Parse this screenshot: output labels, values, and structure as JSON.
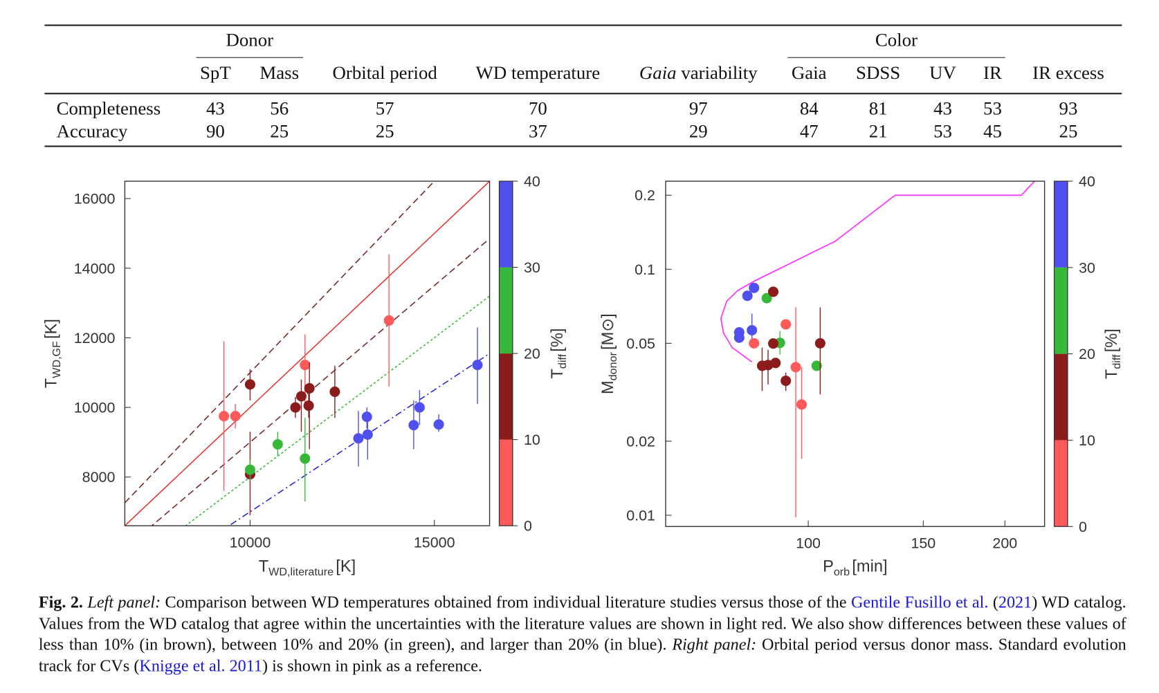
{
  "table": {
    "groups": [
      {
        "label": "Donor",
        "col_from": 0,
        "col_to": 1
      },
      {
        "label": "Color",
        "col_from": 5,
        "col_to": 8
      }
    ],
    "columns": [
      "SpT",
      "Mass",
      "Orbital period",
      "WD temperature",
      "Gaia variability",
      "Gaia",
      "SDSS",
      "UV",
      "IR",
      "IR excess"
    ],
    "italic_prefix": {
      "4": "Gaia"
    },
    "rows": [
      {
        "label": "Completeness",
        "values": [
          "43",
          "56",
          "57",
          "70",
          "97",
          "84",
          "81",
          "43",
          "53",
          "93"
        ]
      },
      {
        "label": "Accuracy",
        "values": [
          "90",
          "25",
          "25",
          "37",
          "29",
          "47",
          "21",
          "53",
          "45",
          "25"
        ]
      }
    ]
  },
  "chart_data": [
    {
      "type": "scatter",
      "panel": "left",
      "xscale": "linear",
      "yscale": "linear",
      "xlim": [
        6600,
        16500
      ],
      "ylim": [
        6600,
        16500
      ],
      "xticks": [
        10000,
        15000
      ],
      "yticks": [
        8000,
        10000,
        12000,
        14000,
        16000
      ],
      "xlabel": {
        "main": "T",
        "sub": "WD,literature",
        "unit": "[K]"
      },
      "ylabel": {
        "main": "T",
        "sub": "WD,GF",
        "unit": "[K]"
      },
      "grid": false,
      "lines": [
        {
          "slope": 1.1,
          "color": "#6b2020",
          "style": "dashed"
        },
        {
          "slope": 1.0,
          "color": "#e8302a",
          "style": "solid"
        },
        {
          "slope": 0.9,
          "color": "#6b2020",
          "style": "dashed"
        },
        {
          "slope": 0.8,
          "color": "#2db82d",
          "style": "dotted"
        },
        {
          "slope": 0.7,
          "color": "#1f1fd6",
          "style": "dashdot"
        }
      ],
      "points": [
        {
          "x": 9290,
          "y": 9750,
          "ylo": 7600,
          "yhi": 11900,
          "group": "0-10"
        },
        {
          "x": 9600,
          "y": 9750,
          "ylo": 9400,
          "yhi": 10100,
          "group": "0-10"
        },
        {
          "x": 11490,
          "y": 11220,
          "ylo": 10000,
          "yhi": 12100,
          "group": "0-10"
        },
        {
          "x": 13770,
          "y": 12500,
          "ylo": 10600,
          "yhi": 14400,
          "group": "0-10"
        },
        {
          "x": 10000,
          "y": 10660,
          "ylo": 10200,
          "yhi": 11100,
          "group": "10-20"
        },
        {
          "x": 10000,
          "y": 8080,
          "ylo": 6900,
          "yhi": 9300,
          "group": "10-20"
        },
        {
          "x": 11230,
          "y": 10000,
          "ylo": 9700,
          "yhi": 10300,
          "group": "10-20"
        },
        {
          "x": 11390,
          "y": 10320,
          "ylo": 9300,
          "yhi": 10800,
          "group": "10-20"
        },
        {
          "x": 11610,
          "y": 10550,
          "ylo": 8800,
          "yhi": 11300,
          "group": "10-20"
        },
        {
          "x": 11590,
          "y": 10050,
          "ylo": 9700,
          "yhi": 10400,
          "group": "10-20"
        },
        {
          "x": 12300,
          "y": 10450,
          "ylo": 9700,
          "yhi": 11200,
          "group": "10-20"
        },
        {
          "x": 10000,
          "y": 8210,
          "ylo": 7900,
          "yhi": 8500,
          "group": "20-30"
        },
        {
          "x": 10750,
          "y": 8940,
          "ylo": 8600,
          "yhi": 9300,
          "group": "20-30"
        },
        {
          "x": 11490,
          "y": 8530,
          "ylo": 7300,
          "yhi": 9700,
          "group": "20-30"
        },
        {
          "x": 12940,
          "y": 9110,
          "ylo": 8300,
          "yhi": 9900,
          "group": "30-40"
        },
        {
          "x": 13170,
          "y": 9730,
          "ylo": 9400,
          "yhi": 10000,
          "group": "30-40"
        },
        {
          "x": 13190,
          "y": 9220,
          "ylo": 8500,
          "yhi": 9600,
          "group": "30-40"
        },
        {
          "x": 14440,
          "y": 9490,
          "ylo": 8800,
          "yhi": 10200,
          "group": "30-40"
        },
        {
          "x": 14600,
          "y": 10000,
          "ylo": 9500,
          "yhi": 10500,
          "group": "30-40"
        },
        {
          "x": 15120,
          "y": 9510,
          "ylo": 9300,
          "yhi": 9800,
          "group": "30-40"
        },
        {
          "x": 16170,
          "y": 11220,
          "ylo": 10100,
          "yhi": 12300,
          "group": "30-40"
        }
      ],
      "colorbar": {
        "label": {
          "main": "T",
          "sub": "diff",
          "unit": "[%]"
        },
        "range": [
          0,
          40
        ],
        "ticks": [
          0,
          10,
          20,
          30,
          40
        ],
        "segments": [
          {
            "group": "0-10",
            "from": 0,
            "to": 10,
            "color": "#ff5a5a"
          },
          {
            "group": "10-20",
            "from": 10,
            "to": 20,
            "color": "#8b1c1c"
          },
          {
            "group": "20-30",
            "from": 20,
            "to": 30,
            "color": "#38b838"
          },
          {
            "group": "30-40",
            "from": 30,
            "to": 40,
            "color": "#5050ee"
          }
        ]
      }
    },
    {
      "type": "scatter",
      "panel": "right",
      "xscale": "log",
      "yscale": "log",
      "xlim": [
        60.5,
        230
      ],
      "ylim": [
        0.009,
        0.228
      ],
      "xticks": [
        100,
        150,
        200
      ],
      "yticks": [
        0.01,
        0.02,
        0.05,
        0.1,
        0.2
      ],
      "xlabel": {
        "main": "P",
        "sub": "orb",
        "unit": "[min]"
      },
      "ylabel": {
        "main": "M",
        "sub": "donor",
        "unit": "[M⊙]"
      },
      "grid": false,
      "track": {
        "color": "#ff33ff",
        "points": [
          [
            222,
            0.228
          ],
          [
            212,
            0.2
          ],
          [
            136,
            0.2
          ],
          [
            134.5,
            0.196
          ],
          [
            110,
            0.13
          ],
          [
            90,
            0.1
          ],
          [
            83,
            0.09
          ],
          [
            78,
            0.082
          ],
          [
            75,
            0.074
          ],
          [
            73.5,
            0.063
          ],
          [
            74.2,
            0.055
          ],
          [
            76.5,
            0.048
          ],
          [
            82,
            0.042
          ]
        ]
      },
      "points": [
        {
          "x": 82.6,
          "y": 0.084,
          "group": "30-40"
        },
        {
          "x": 80.7,
          "y": 0.078,
          "group": "30-40"
        },
        {
          "x": 78.4,
          "y": 0.0554,
          "group": "30-40"
        },
        {
          "x": 78.4,
          "y": 0.0527,
          "group": "30-40"
        },
        {
          "x": 82.0,
          "y": 0.0565,
          "ylo": 0.05,
          "yhi": 0.066,
          "group": "30-40"
        },
        {
          "x": 86.4,
          "y": 0.0763,
          "group": "20-30"
        },
        {
          "x": 90.5,
          "y": 0.0502,
          "ylo": 0.045,
          "yhi": 0.056,
          "group": "20-30"
        },
        {
          "x": 103,
          "y": 0.0405,
          "group": "20-30"
        },
        {
          "x": 88.4,
          "y": 0.081,
          "group": "10-20"
        },
        {
          "x": 88.4,
          "y": 0.0499,
          "group": "10-20"
        },
        {
          "x": 85.0,
          "y": 0.0405,
          "ylo": 0.032,
          "yhi": 0.048,
          "group": "10-20"
        },
        {
          "x": 86.8,
          "y": 0.0408,
          "ylo": 0.034,
          "yhi": 0.047,
          "group": "10-20"
        },
        {
          "x": 89.1,
          "y": 0.0416,
          "group": "10-20"
        },
        {
          "x": 92.4,
          "y": 0.0352,
          "ylo": 0.032,
          "yhi": 0.038,
          "group": "10-20"
        },
        {
          "x": 104.3,
          "y": 0.05,
          "ylo": 0.031,
          "yhi": 0.07,
          "group": "10-20"
        },
        {
          "x": 82.6,
          "y": 0.05,
          "group": "0-10"
        },
        {
          "x": 92.4,
          "y": 0.0597,
          "group": "0-10"
        },
        {
          "x": 95.7,
          "y": 0.04,
          "ylo": 0.0098,
          "yhi": 0.07,
          "group": "0-10"
        },
        {
          "x": 97.7,
          "y": 0.0282,
          "ylo": 0.017,
          "yhi": 0.04,
          "group": "0-10"
        }
      ],
      "colorbar": {
        "label": {
          "main": "T",
          "sub": "diff",
          "unit": "[%]"
        },
        "range": [
          0,
          40
        ],
        "ticks": [
          0,
          10,
          20,
          30,
          40
        ],
        "segments": [
          {
            "group": "0-10",
            "from": 0,
            "to": 10,
            "color": "#ff5a5a"
          },
          {
            "group": "10-20",
            "from": 10,
            "to": 20,
            "color": "#8b1c1c"
          },
          {
            "group": "20-30",
            "from": 20,
            "to": 30,
            "color": "#38b838"
          },
          {
            "group": "30-40",
            "from": 30,
            "to": 40,
            "color": "#5050ee"
          }
        ]
      }
    }
  ],
  "caption": {
    "fig": "Fig. 2.",
    "left_panel": "Left panel:",
    "text1": " Comparison between WD temperatures obtained from individual literature studies versus those of the ",
    "link1": "Gentile Fusillo et al.",
    "text1b": " (",
    "link1_year": "2021",
    "text2": ") WD catalog. Values from the WD catalog that agree within the uncertainties with the literature values are shown in light red. We also show differences between these values of less than 10% (in brown), between 10% and 20% (in green), and larger than 20% (in blue). ",
    "right_panel": "Right panel:",
    "text3": " Orbital period versus donor mass. Standard evolution track for CVs (",
    "link2": "Knigge et al. 2011",
    "text4": ") is shown in pink as a reference.",
    "link_color": "#1a1ad6"
  }
}
